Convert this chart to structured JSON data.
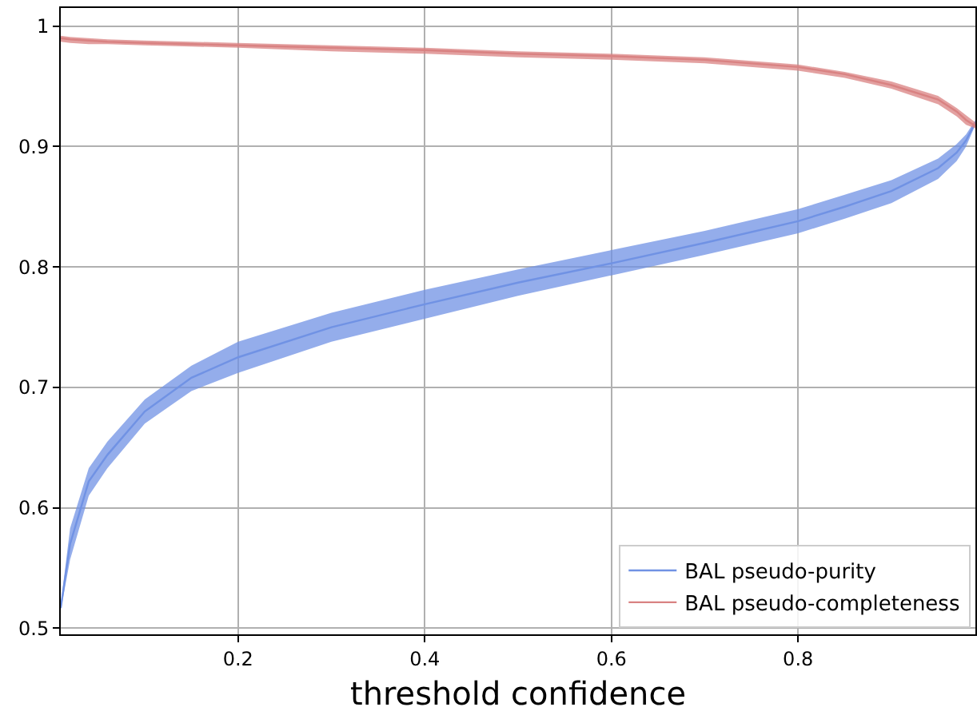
{
  "chart_data": {
    "type": "line",
    "xlabel": "threshold confidence",
    "x": [
      0.01,
      0.02,
      0.04,
      0.06,
      0.1,
      0.15,
      0.2,
      0.3,
      0.4,
      0.5,
      0.6,
      0.7,
      0.8,
      0.85,
      0.9,
      0.95,
      0.97,
      0.98,
      0.99
    ],
    "series": [
      {
        "name": "BAL pseudo-purity",
        "color": "#7092e4",
        "values": [
          0.517,
          0.57,
          0.622,
          0.644,
          0.68,
          0.708,
          0.725,
          0.75,
          0.769,
          0.787,
          0.803,
          0.82,
          0.838,
          0.85,
          0.863,
          0.882,
          0.895,
          0.905,
          0.92
        ],
        "lower": [
          0.515,
          0.557,
          0.61,
          0.633,
          0.67,
          0.697,
          0.712,
          0.738,
          0.757,
          0.776,
          0.793,
          0.81,
          0.828,
          0.84,
          0.853,
          0.873,
          0.888,
          0.9,
          0.918
        ],
        "upper": [
          0.52,
          0.583,
          0.633,
          0.655,
          0.69,
          0.718,
          0.738,
          0.762,
          0.781,
          0.798,
          0.814,
          0.83,
          0.848,
          0.86,
          0.872,
          0.89,
          0.902,
          0.91,
          0.922
        ]
      },
      {
        "name": "BAL pseudo-completeness",
        "color": "#d98282",
        "values": [
          0.99,
          0.989,
          0.988,
          0.987,
          0.986,
          0.985,
          0.984,
          0.982,
          0.98,
          0.977,
          0.975,
          0.972,
          0.966,
          0.96,
          0.951,
          0.939,
          0.929,
          0.922,
          0.917
        ],
        "lower": [
          0.987,
          0.986,
          0.985,
          0.985,
          0.984,
          0.983,
          0.982,
          0.979,
          0.977,
          0.974,
          0.972,
          0.969,
          0.963,
          0.957,
          0.948,
          0.935,
          0.925,
          0.918,
          0.915
        ],
        "upper": [
          0.992,
          0.991,
          0.99,
          0.989,
          0.988,
          0.987,
          0.986,
          0.984,
          0.982,
          0.979,
          0.977,
          0.974,
          0.968,
          0.962,
          0.954,
          0.942,
          0.932,
          0.926,
          0.92
        ]
      }
    ],
    "xlim": [
      0.01,
      0.99
    ],
    "ylim": [
      0.495,
      1.015
    ],
    "xticks": [
      0.2,
      0.4,
      0.6,
      0.8
    ],
    "yticks": [
      0.5,
      0.6,
      0.7,
      0.8,
      0.9,
      1.0
    ],
    "grid": true,
    "legend": "bottom right",
    "line_style": "solid"
  }
}
